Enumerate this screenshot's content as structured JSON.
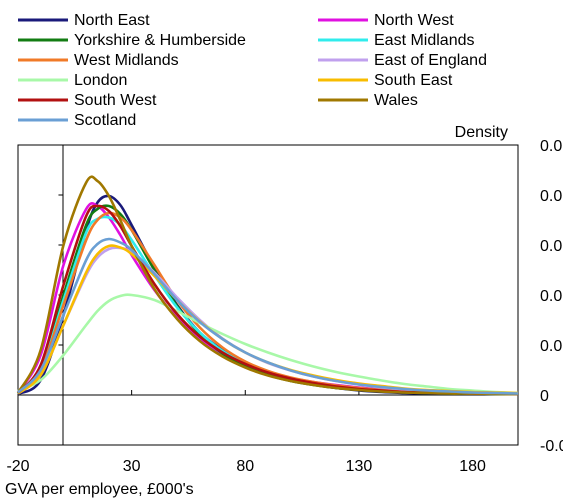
{
  "chart_data": {
    "type": "line",
    "title": "",
    "xlabel": "GVA per employee, £000's",
    "ylabel": "Density",
    "xlim": [
      -20,
      200
    ],
    "ylim": [
      -0.01,
      0.05
    ],
    "x_ticks": [
      -20,
      30,
      80,
      130,
      180
    ],
    "x_tick_labels": [
      "-20",
      "30",
      "80",
      "130",
      "180"
    ],
    "y_ticks": [
      -0.01,
      0,
      0.01,
      0.02,
      0.03,
      0.04,
      0.05
    ],
    "y_tick_labels": [
      "-0.0",
      "0",
      "0.0",
      "0.0",
      "0.0",
      "0.0",
      "0.0"
    ],
    "grid": false,
    "legend_position": "top",
    "series": [
      {
        "name": "North East",
        "color": "#1a1a7a",
        "x": [
          -20,
          -10,
          0,
          10,
          15,
          20,
          25,
          30,
          40,
          50,
          60,
          70,
          80,
          90,
          100,
          110,
          120,
          130,
          140,
          150,
          160,
          170,
          180,
          190,
          200
        ],
        "y": [
          0.0002,
          0.003,
          0.016,
          0.033,
          0.0385,
          0.0398,
          0.038,
          0.034,
          0.0255,
          0.018,
          0.0125,
          0.009,
          0.0062,
          0.0043,
          0.003,
          0.0021,
          0.0014,
          0.0009,
          0.0006,
          0.0004,
          0.0003,
          0.0003,
          0.0003,
          0.0002,
          0.0002
        ]
      },
      {
        "name": "North West",
        "color": "#e010e0",
        "x": [
          -20,
          -10,
          0,
          10,
          15,
          20,
          25,
          30,
          40,
          50,
          60,
          70,
          80,
          90,
          100,
          110,
          120,
          130,
          140,
          150,
          160,
          170,
          180,
          190,
          200
        ],
        "y": [
          0.0005,
          0.008,
          0.026,
          0.0372,
          0.0378,
          0.0355,
          0.032,
          0.028,
          0.021,
          0.0155,
          0.0112,
          0.0082,
          0.006,
          0.0045,
          0.0034,
          0.0026,
          0.002,
          0.0015,
          0.0011,
          0.0008,
          0.0006,
          0.0005,
          0.0004,
          0.0003,
          0.0003
        ]
      },
      {
        "name": "Yorkshire & Humberside",
        "color": "#137c13",
        "x": [
          -20,
          -10,
          0,
          10,
          15,
          20,
          25,
          30,
          40,
          50,
          60,
          70,
          80,
          90,
          100,
          110,
          120,
          130,
          140,
          150,
          160,
          170,
          180,
          190,
          200
        ],
        "y": [
          0.0003,
          0.005,
          0.02,
          0.034,
          0.0372,
          0.0378,
          0.0362,
          0.033,
          0.025,
          0.0178,
          0.0122,
          0.0083,
          0.0057,
          0.004,
          0.0028,
          0.002,
          0.0014,
          0.001,
          0.0007,
          0.0005,
          0.0004,
          0.0003,
          0.0003,
          0.0002,
          0.0002
        ]
      },
      {
        "name": "East Midlands",
        "color": "#30ecec",
        "x": [
          -20,
          -10,
          0,
          10,
          15,
          20,
          25,
          30,
          40,
          50,
          60,
          70,
          80,
          90,
          100,
          110,
          120,
          130,
          140,
          150,
          160,
          170,
          180,
          190,
          200
        ],
        "y": [
          0.0003,
          0.005,
          0.019,
          0.0325,
          0.0352,
          0.0355,
          0.034,
          0.031,
          0.024,
          0.0175,
          0.0125,
          0.0088,
          0.0063,
          0.0046,
          0.0034,
          0.0025,
          0.0018,
          0.0013,
          0.0009,
          0.0007,
          0.0005,
          0.0004,
          0.0003,
          0.0003,
          0.0002
        ]
      },
      {
        "name": "West Midlands",
        "color": "#f07a28",
        "x": [
          -20,
          -10,
          0,
          10,
          15,
          20,
          25,
          30,
          40,
          50,
          60,
          70,
          80,
          90,
          100,
          110,
          120,
          130,
          140,
          150,
          160,
          170,
          180,
          190,
          200
        ],
        "y": [
          0.0004,
          0.005,
          0.018,
          0.031,
          0.035,
          0.0364,
          0.0355,
          0.033,
          0.026,
          0.019,
          0.0135,
          0.0095,
          0.0067,
          0.0048,
          0.0035,
          0.0026,
          0.0019,
          0.0014,
          0.001,
          0.0007,
          0.0005,
          0.0004,
          0.0003,
          0.0003,
          0.0002
        ]
      },
      {
        "name": "East of England",
        "color": "#c0a0ee",
        "x": [
          -20,
          -10,
          0,
          10,
          15,
          20,
          25,
          30,
          40,
          50,
          60,
          70,
          80,
          90,
          100,
          110,
          120,
          130,
          140,
          150,
          160,
          170,
          180,
          190,
          200
        ],
        "y": [
          0.0003,
          0.004,
          0.014,
          0.024,
          0.0275,
          0.0292,
          0.0294,
          0.0285,
          0.0245,
          0.0195,
          0.015,
          0.0113,
          0.0085,
          0.0064,
          0.0049,
          0.0037,
          0.0028,
          0.0021,
          0.0015,
          0.0011,
          0.0008,
          0.0006,
          0.0004,
          0.0003,
          0.0002
        ]
      },
      {
        "name": "London",
        "color": "#a8f8a8",
        "x": [
          -20,
          -10,
          0,
          10,
          15,
          20,
          25,
          30,
          40,
          50,
          60,
          70,
          80,
          90,
          100,
          110,
          120,
          130,
          140,
          150,
          160,
          170,
          180,
          190,
          200
        ],
        "y": [
          0.0008,
          0.003,
          0.008,
          0.014,
          0.0168,
          0.0188,
          0.0198,
          0.02,
          0.019,
          0.0168,
          0.0144,
          0.0122,
          0.0102,
          0.0085,
          0.007,
          0.0057,
          0.0046,
          0.0037,
          0.0029,
          0.0022,
          0.0017,
          0.0012,
          0.0009,
          0.0006,
          0.0004
        ]
      },
      {
        "name": "South East",
        "color": "#f8bc00",
        "x": [
          -20,
          -10,
          0,
          10,
          15,
          20,
          25,
          30,
          40,
          50,
          60,
          70,
          80,
          90,
          100,
          110,
          120,
          130,
          140,
          150,
          160,
          170,
          180,
          190,
          200
        ],
        "y": [
          0.0003,
          0.004,
          0.014,
          0.0245,
          0.0282,
          0.0298,
          0.0295,
          0.0282,
          0.0238,
          0.019,
          0.0147,
          0.0112,
          0.0085,
          0.0065,
          0.005,
          0.0039,
          0.003,
          0.0023,
          0.0018,
          0.0013,
          0.001,
          0.0008,
          0.0006,
          0.0005,
          0.0004
        ]
      },
      {
        "name": "South West",
        "color": "#b21010",
        "x": [
          -20,
          -10,
          0,
          10,
          15,
          20,
          25,
          30,
          40,
          50,
          60,
          70,
          80,
          90,
          100,
          110,
          120,
          130,
          140,
          150,
          160,
          170,
          180,
          190,
          200
        ],
        "y": [
          0.0004,
          0.006,
          0.022,
          0.0358,
          0.0378,
          0.0368,
          0.0338,
          0.0298,
          0.0222,
          0.0162,
          0.0117,
          0.0085,
          0.0062,
          0.0045,
          0.0033,
          0.0024,
          0.0017,
          0.0012,
          0.0009,
          0.0006,
          0.0005,
          0.0004,
          0.0003,
          0.0003,
          0.0002
        ]
      },
      {
        "name": "Wales",
        "color": "#a07800",
        "x": [
          -20,
          -10,
          0,
          10,
          15,
          20,
          25,
          30,
          40,
          50,
          60,
          70,
          80,
          90,
          100,
          110,
          120,
          130,
          140,
          150,
          160,
          170,
          180,
          190,
          200
        ],
        "y": [
          0.0004,
          0.009,
          0.03,
          0.0425,
          0.0428,
          0.0398,
          0.035,
          0.0298,
          0.0212,
          0.0152,
          0.0108,
          0.0077,
          0.0055,
          0.0039,
          0.0028,
          0.002,
          0.0014,
          0.001,
          0.0007,
          0.0005,
          0.0004,
          0.0003,
          0.0003,
          0.0002,
          0.0002
        ]
      },
      {
        "name": "Scotland",
        "color": "#6a9fd4",
        "x": [
          -20,
          -10,
          0,
          10,
          15,
          20,
          25,
          30,
          40,
          50,
          60,
          70,
          80,
          90,
          100,
          110,
          120,
          130,
          140,
          150,
          160,
          170,
          180,
          190,
          200
        ],
        "y": [
          0.0005,
          0.005,
          0.016,
          0.027,
          0.0302,
          0.0312,
          0.0305,
          0.029,
          0.0242,
          0.019,
          0.0146,
          0.0112,
          0.0085,
          0.0065,
          0.0049,
          0.0037,
          0.0028,
          0.0021,
          0.0016,
          0.0012,
          0.0009,
          0.0007,
          0.0005,
          0.0004,
          0.0003
        ]
      }
    ]
  }
}
